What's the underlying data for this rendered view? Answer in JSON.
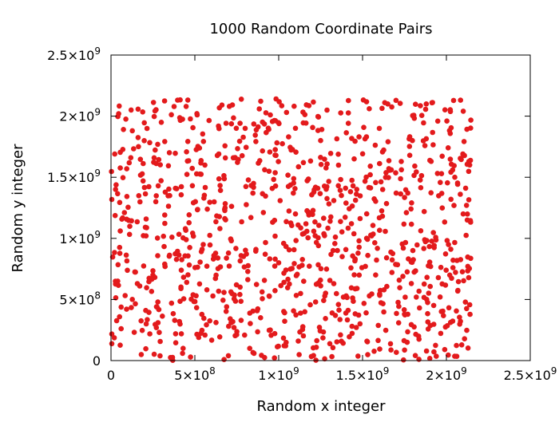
{
  "chart_data": {
    "type": "scatter",
    "title": "1000 Random Coordinate Pairs",
    "xlabel": "Random x integer",
    "ylabel": "Random y integer",
    "xlim": [
      0,
      2500000000
    ],
    "ylim": [
      0,
      2500000000
    ],
    "grid": false,
    "legend": "none",
    "point_color": "#e31a1c",
    "x_ticks": [
      {
        "value": 0,
        "base": "0",
        "exp": ""
      },
      {
        "value": 500000000,
        "base": "5×10",
        "exp": "8"
      },
      {
        "value": 1000000000,
        "base": "1×10",
        "exp": "9"
      },
      {
        "value": 1500000000,
        "base": "1.5×10",
        "exp": "9"
      },
      {
        "value": 2000000000,
        "base": "2×10",
        "exp": "9"
      },
      {
        "value": 2500000000,
        "base": "2.5×10",
        "exp": "9"
      }
    ],
    "y_ticks": [
      {
        "value": 0,
        "base": "0",
        "exp": ""
      },
      {
        "value": 500000000,
        "base": "5×10",
        "exp": "8"
      },
      {
        "value": 1000000000,
        "base": "1×10",
        "exp": "9"
      },
      {
        "value": 1500000000,
        "base": "1.5×10",
        "exp": "9"
      },
      {
        "value": 2000000000,
        "base": "2×10",
        "exp": "9"
      },
      {
        "value": 2500000000,
        "base": "2.5×10",
        "exp": "9"
      }
    ],
    "point_count": 1000,
    "value_max": 2147483647,
    "series": [
      {
        "points": [
          [
            120000000,
            2050000000
          ],
          [
            300000000,
            1950000000
          ],
          [
            560000000,
            1600000000
          ],
          [
            850000000,
            1450000000
          ],
          [
            1100000000,
            1200000000
          ],
          [
            1350000000,
            900000000
          ],
          [
            1620000000,
            1400000000
          ],
          [
            1880000000,
            2100000000
          ],
          [
            2050000000,
            1500000000
          ],
          [
            2100000000,
            1200000000
          ],
          [
            40000000,
            650000000
          ],
          [
            210000000,
            300000000
          ],
          [
            430000000,
            100000000
          ],
          [
            700000000,
            40000000
          ],
          [
            950000000,
            250000000
          ],
          [
            1220000000,
            480000000
          ],
          [
            1480000000,
            700000000
          ],
          [
            1750000000,
            380000000
          ],
          [
            1990000000,
            90000000
          ],
          [
            1600000000,
            1900000000
          ],
          [
            800000000,
            1900000000
          ],
          [
            350000000,
            1350000000
          ],
          [
            1450000000,
            1650000000
          ],
          [
            1000000000,
            800000000
          ],
          [
            550000000,
            950000000
          ],
          [
            1800000000,
            900000000
          ],
          [
            2020000000,
            700000000
          ],
          [
            250000000,
            700000000
          ],
          [
            1250000000,
            1800000000
          ],
          [
            680000000,
            1250000000
          ]
        ]
      }
    ]
  }
}
